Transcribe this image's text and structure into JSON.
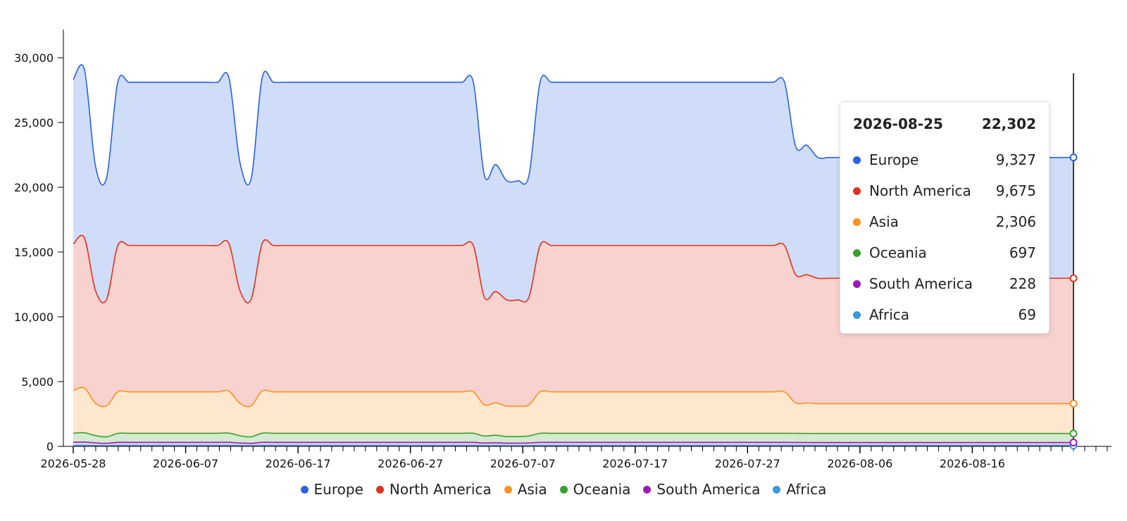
{
  "chart_data": {
    "type": "area",
    "stacked": true,
    "ylim": [
      0,
      30000
    ],
    "yticks": [
      0,
      5000,
      10000,
      15000,
      20000,
      25000,
      30000
    ],
    "ytick_labels": [
      "0",
      "5,000",
      "10,000",
      "15,000",
      "20,000",
      "25,000",
      "30,000"
    ],
    "xtick_labels": [
      "2026-05-28",
      "2026-06-07",
      "2026-06-17",
      "2026-06-27",
      "2026-07-07",
      "2026-07-17",
      "2026-07-27",
      "2026-08-06",
      "2026-08-16"
    ],
    "x_start": "2026-05-28",
    "x_end": "2026-08-25",
    "grid": false,
    "legend_position": "bottom",
    "series": [
      {
        "name": "Africa",
        "color": "#3a9ad9",
        "values": [
          69,
          69,
          62,
          56,
          69,
          69,
          69,
          69,
          69,
          69,
          69,
          69,
          69,
          69,
          69,
          62,
          56,
          69,
          69,
          69,
          69,
          69,
          69,
          69,
          69,
          69,
          69,
          69,
          69,
          69,
          69,
          69,
          69,
          69,
          69,
          69,
          69,
          58,
          62,
          55,
          55,
          58,
          69,
          69,
          69,
          69,
          69,
          69,
          69,
          69,
          69,
          69,
          69,
          69,
          69,
          69,
          69,
          69,
          69,
          69,
          69,
          69,
          69,
          69,
          69,
          69,
          69,
          69,
          69,
          69,
          69,
          69,
          69,
          69,
          69,
          69,
          69,
          69,
          69,
          69,
          69,
          69,
          69,
          69,
          69,
          69,
          69,
          69,
          69,
          69,
          69
        ]
      },
      {
        "name": "South America",
        "color": "#9b1ab8",
        "values": [
          250,
          260,
          210,
          180,
          240,
          240,
          240,
          240,
          240,
          240,
          240,
          240,
          240,
          240,
          245,
          200,
          180,
          245,
          240,
          240,
          240,
          240,
          240,
          240,
          240,
          240,
          240,
          240,
          240,
          240,
          240,
          240,
          240,
          240,
          240,
          240,
          240,
          200,
          215,
          195,
          195,
          205,
          240,
          240,
          240,
          240,
          240,
          240,
          240,
          240,
          240,
          240,
          240,
          240,
          240,
          240,
          240,
          240,
          240,
          240,
          240,
          240,
          240,
          240,
          240,
          235,
          230,
          228,
          228,
          228,
          228,
          228,
          228,
          228,
          228,
          228,
          228,
          228,
          228,
          228,
          228,
          228,
          228,
          228,
          228,
          228,
          228,
          228,
          228,
          228,
          228
        ]
      },
      {
        "name": "Oceania",
        "color": "#3aa02e",
        "values": [
          700,
          720,
          560,
          500,
          690,
          700,
          700,
          700,
          700,
          700,
          700,
          700,
          700,
          700,
          710,
          560,
          500,
          710,
          700,
          700,
          700,
          700,
          700,
          700,
          700,
          700,
          700,
          700,
          700,
          700,
          700,
          700,
          700,
          700,
          700,
          700,
          700,
          540,
          580,
          510,
          510,
          540,
          700,
          700,
          700,
          700,
          700,
          700,
          700,
          700,
          700,
          700,
          700,
          700,
          700,
          700,
          700,
          700,
          700,
          700,
          700,
          700,
          700,
          700,
          700,
          700,
          700,
          697,
          697,
          697,
          697,
          697,
          697,
          697,
          697,
          697,
          697,
          697,
          697,
          697,
          697,
          697,
          697,
          697,
          697,
          697,
          697,
          697,
          697,
          697,
          697
        ]
      },
      {
        "name": "Asia",
        "color": "#f7921e",
        "values": [
          3300,
          3450,
          2500,
          2400,
          3200,
          3200,
          3200,
          3200,
          3200,
          3200,
          3200,
          3200,
          3200,
          3200,
          3250,
          2500,
          2400,
          3250,
          3200,
          3200,
          3200,
          3200,
          3200,
          3200,
          3200,
          3200,
          3200,
          3200,
          3200,
          3200,
          3200,
          3200,
          3200,
          3200,
          3200,
          3200,
          3200,
          2400,
          2500,
          2350,
          2350,
          2400,
          3200,
          3200,
          3200,
          3200,
          3200,
          3200,
          3200,
          3200,
          3200,
          3200,
          3200,
          3200,
          3200,
          3200,
          3200,
          3200,
          3200,
          3200,
          3200,
          3200,
          3200,
          3200,
          3200,
          2350,
          2350,
          2306,
          2306,
          2306,
          2306,
          2306,
          2306,
          2306,
          2306,
          2306,
          2306,
          2306,
          2306,
          2306,
          2306,
          2306,
          2306,
          2306,
          2306,
          2306,
          2306,
          2306,
          2306,
          2306,
          2306
        ]
      },
      {
        "name": "North America",
        "color": "#e0321e",
        "values": [
          11300,
          11600,
          8700,
          8200,
          11300,
          11300,
          11300,
          11300,
          11300,
          11300,
          11300,
          11300,
          11300,
          11300,
          11400,
          8700,
          8200,
          11400,
          11300,
          11300,
          11300,
          11300,
          11300,
          11300,
          11300,
          11300,
          11300,
          11300,
          11300,
          11300,
          11300,
          11300,
          11300,
          11300,
          11300,
          11300,
          11300,
          8300,
          8600,
          8200,
          8200,
          8300,
          11300,
          11300,
          11300,
          11300,
          11300,
          11300,
          11300,
          11300,
          11300,
          11300,
          11300,
          11300,
          11300,
          11300,
          11300,
          11300,
          11300,
          11300,
          11300,
          11300,
          11300,
          11300,
          11300,
          9900,
          9900,
          9675,
          9675,
          9675,
          9675,
          9675,
          9675,
          9675,
          9675,
          9675,
          9675,
          9675,
          9675,
          9675,
          9675,
          9675,
          9675,
          9675,
          9675,
          9675,
          9675,
          9675,
          9675,
          9675,
          9675
        ]
      },
      {
        "name": "Europe",
        "color": "#2a62e0",
        "values": [
          12700,
          13000,
          9600,
          9400,
          12600,
          12600,
          12600,
          12600,
          12600,
          12600,
          12600,
          12600,
          12600,
          12600,
          12800,
          9900,
          9300,
          12800,
          12600,
          12600,
          12600,
          12600,
          12600,
          12600,
          12600,
          12600,
          12600,
          12600,
          12600,
          12600,
          12600,
          12600,
          12600,
          12600,
          12600,
          12600,
          12600,
          9400,
          9800,
          9200,
          9200,
          9400,
          12600,
          12600,
          12600,
          12600,
          12600,
          12600,
          12600,
          12600,
          12600,
          12600,
          12600,
          12600,
          12600,
          12600,
          12600,
          12600,
          12600,
          12600,
          12600,
          12600,
          12600,
          12600,
          12600,
          9900,
          10000,
          9327,
          9327,
          9327,
          9327,
          9327,
          9327,
          9327,
          9327,
          9327,
          9327,
          9327,
          9327,
          9327,
          9327,
          9327,
          9327,
          9327,
          9327,
          9327,
          9327,
          9327,
          9327,
          9327,
          9327
        ]
      }
    ]
  },
  "legend": {
    "items": [
      {
        "label": "Europe",
        "color": "#2a62e0"
      },
      {
        "label": "North America",
        "color": "#e0321e"
      },
      {
        "label": "Asia",
        "color": "#f7921e"
      },
      {
        "label": "Oceania",
        "color": "#3aa02e"
      },
      {
        "label": "South America",
        "color": "#9b1ab8"
      },
      {
        "label": "Africa",
        "color": "#3a9ad9"
      }
    ]
  },
  "tooltip": {
    "date": "2026-08-25",
    "total": "22,302",
    "rows": [
      {
        "label": "Europe",
        "value": "9,327",
        "color": "#2a62e0"
      },
      {
        "label": "North America",
        "value": "9,675",
        "color": "#e0321e"
      },
      {
        "label": "Asia",
        "value": "2,306",
        "color": "#f7921e"
      },
      {
        "label": "Oceania",
        "value": "697",
        "color": "#3aa02e"
      },
      {
        "label": "South America",
        "value": "228",
        "color": "#9b1ab8"
      },
      {
        "label": "Africa",
        "value": "69",
        "color": "#3a9ad9"
      }
    ]
  }
}
